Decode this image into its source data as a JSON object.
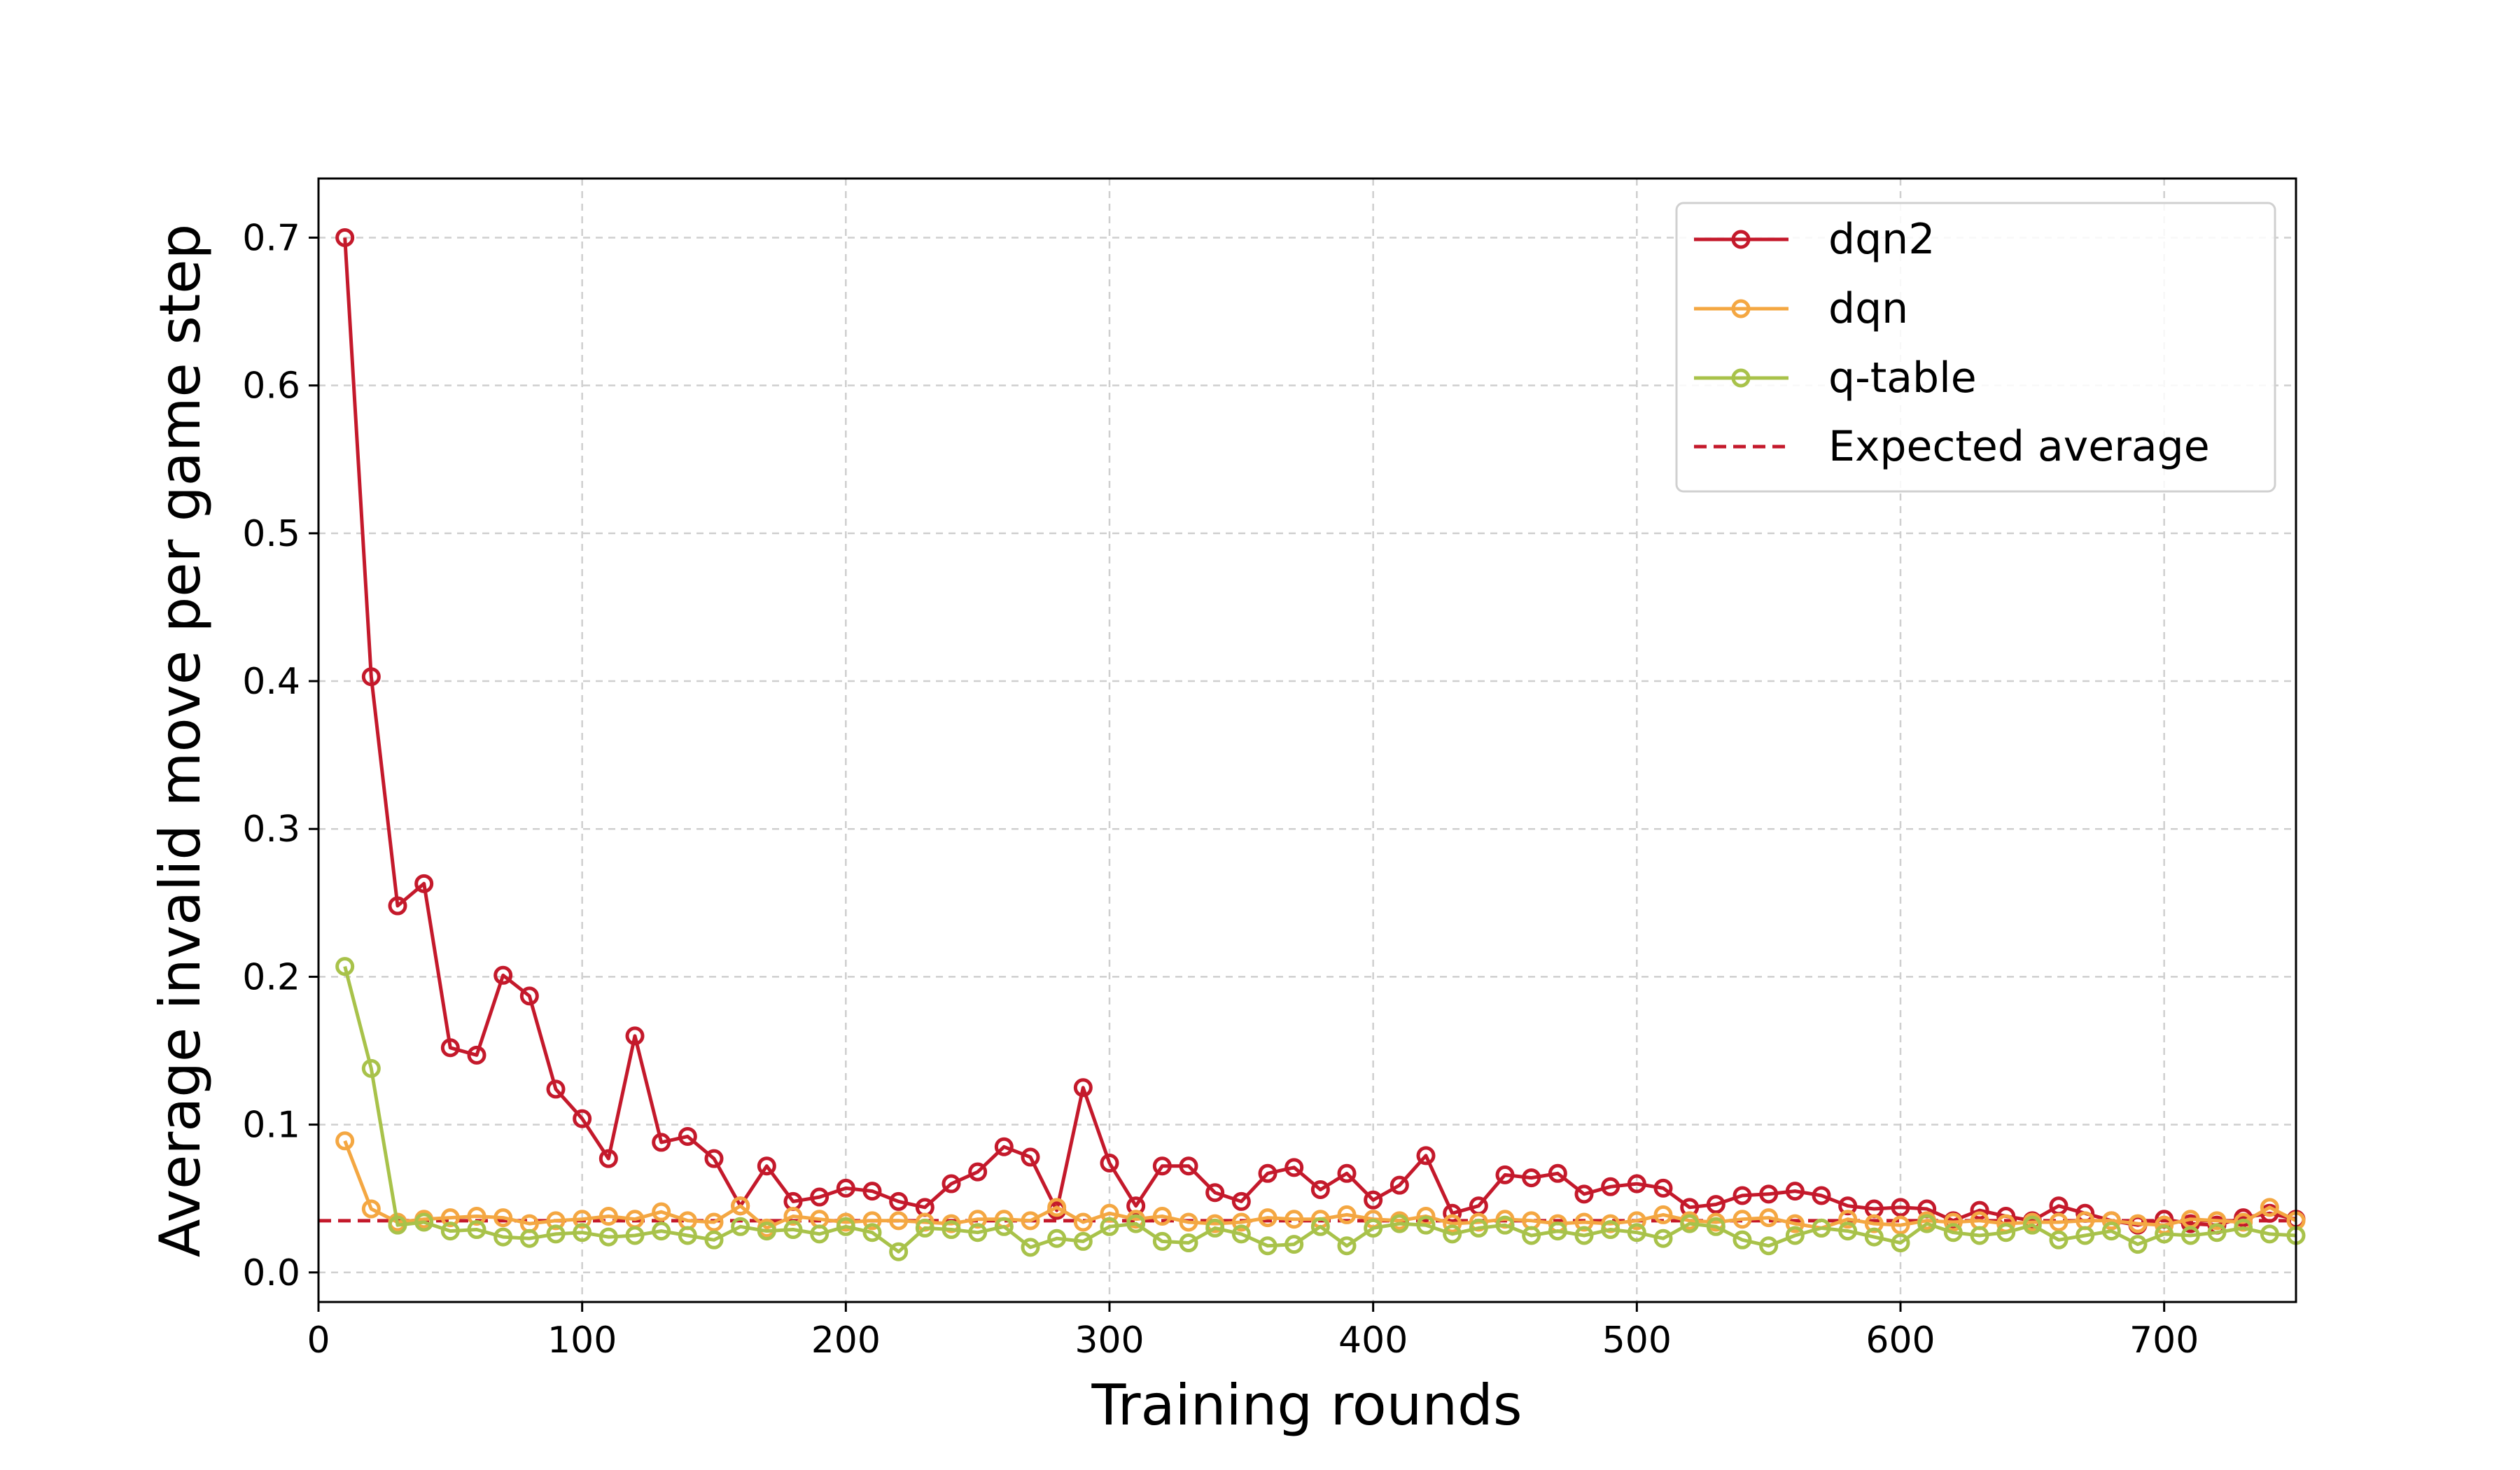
{
  "chart_data": {
    "type": "line",
    "title": "",
    "xlabel": "Training rounds",
    "ylabel": "Average invalid move per game step",
    "xlim": [
      0,
      750
    ],
    "ylim": [
      -0.02,
      0.74
    ],
    "x_ticks": [
      "0",
      "100",
      "200",
      "300",
      "400",
      "500",
      "600",
      "700"
    ],
    "y_ticks": [
      "0.0",
      "0.1",
      "0.2",
      "0.3",
      "0.4",
      "0.5",
      "0.6",
      "0.7"
    ],
    "grid": true,
    "legend_position": "top-right",
    "x": [
      10,
      20,
      30,
      40,
      50,
      60,
      70,
      80,
      90,
      100,
      110,
      120,
      130,
      140,
      150,
      160,
      170,
      180,
      190,
      200,
      210,
      220,
      230,
      240,
      250,
      260,
      270,
      280,
      290,
      300,
      310,
      320,
      330,
      340,
      350,
      360,
      370,
      380,
      390,
      400,
      410,
      420,
      430,
      440,
      450,
      460,
      470,
      480,
      490,
      500,
      510,
      520,
      530,
      540,
      550,
      560,
      570,
      580,
      590,
      600,
      610,
      620,
      630,
      640,
      650,
      660,
      670,
      680,
      690,
      700,
      710,
      720,
      730,
      740,
      750
    ],
    "series": [
      {
        "name": "dqn2",
        "color": "#c4192b",
        "values": [
          0.7,
          0.403,
          0.248,
          0.263,
          0.152,
          0.147,
          0.201,
          0.187,
          0.124,
          0.104,
          0.077,
          0.16,
          0.088,
          0.092,
          0.077,
          0.045,
          0.072,
          0.048,
          0.051,
          0.057,
          0.055,
          0.048,
          0.044,
          0.06,
          0.068,
          0.085,
          0.078,
          0.042,
          0.125,
          0.074,
          0.045,
          0.072,
          0.072,
          0.054,
          0.048,
          0.067,
          0.071,
          0.056,
          0.067,
          0.049,
          0.059,
          0.079,
          0.04,
          0.045,
          0.066,
          0.064,
          0.067,
          0.053,
          0.058,
          0.06,
          0.057,
          0.044,
          0.046,
          0.052,
          0.053,
          0.055,
          0.052,
          0.045,
          0.043,
          0.044,
          0.043,
          0.035,
          0.042,
          0.038,
          0.035,
          0.045,
          0.04,
          0.035,
          0.032,
          0.036,
          0.033,
          0.032,
          0.037,
          0.04,
          0.036
        ]
      },
      {
        "name": "dqn",
        "color": "#f4a742",
        "values": [
          0.089,
          0.043,
          0.034,
          0.036,
          0.037,
          0.038,
          0.037,
          0.033,
          0.035,
          0.036,
          0.038,
          0.036,
          0.041,
          0.035,
          0.034,
          0.045,
          0.03,
          0.038,
          0.036,
          0.034,
          0.035,
          0.035,
          0.034,
          0.033,
          0.036,
          0.036,
          0.035,
          0.044,
          0.034,
          0.04,
          0.036,
          0.038,
          0.034,
          0.033,
          0.034,
          0.037,
          0.036,
          0.036,
          0.039,
          0.036,
          0.035,
          0.038,
          0.033,
          0.034,
          0.036,
          0.035,
          0.033,
          0.034,
          0.033,
          0.035,
          0.039,
          0.035,
          0.034,
          0.036,
          0.037,
          0.033,
          0.03,
          0.036,
          0.033,
          0.032,
          0.035,
          0.034,
          0.035,
          0.033,
          0.034,
          0.034,
          0.035,
          0.035,
          0.033,
          0.032,
          0.036,
          0.035,
          0.034,
          0.044,
          0.035
        ]
      },
      {
        "name": "q-table",
        "color": "#a8c24a",
        "values": [
          0.207,
          0.138,
          0.032,
          0.034,
          0.028,
          0.029,
          0.024,
          0.023,
          0.026,
          0.027,
          0.024,
          0.025,
          0.028,
          0.025,
          0.022,
          0.031,
          0.028,
          0.029,
          0.026,
          0.031,
          0.027,
          0.014,
          0.03,
          0.029,
          0.027,
          0.031,
          0.017,
          0.023,
          0.021,
          0.031,
          0.033,
          0.021,
          0.02,
          0.03,
          0.026,
          0.018,
          0.019,
          0.031,
          0.018,
          0.03,
          0.033,
          0.032,
          0.026,
          0.03,
          0.032,
          0.025,
          0.028,
          0.025,
          0.029,
          0.027,
          0.023,
          0.033,
          0.031,
          0.022,
          0.018,
          0.025,
          0.03,
          0.028,
          0.024,
          0.02,
          0.033,
          0.027,
          0.025,
          0.027,
          0.032,
          0.022,
          0.025,
          0.028,
          0.019,
          0.026,
          0.025,
          0.027,
          0.03,
          0.026,
          0.025
        ]
      }
    ],
    "reference_line": {
      "name": "Expected average",
      "value": 0.035,
      "color": "#c4192b"
    }
  }
}
